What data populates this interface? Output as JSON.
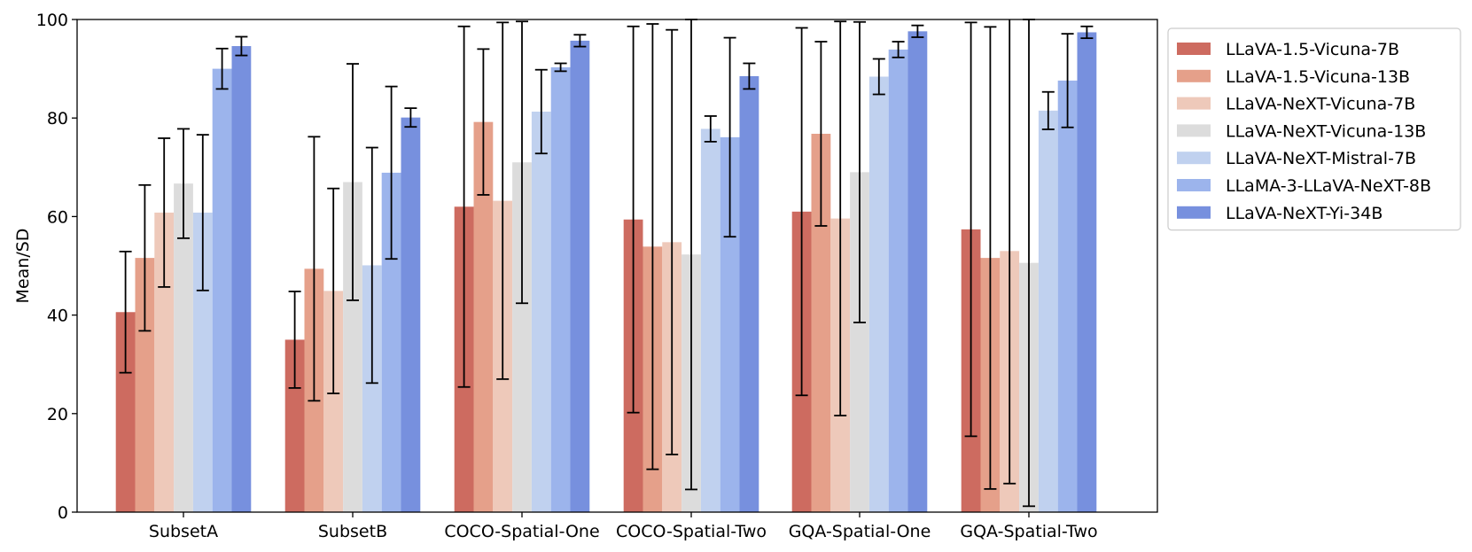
{
  "chart_data": {
    "type": "bar",
    "title": "",
    "xlabel": "",
    "ylabel": "Mean/SD",
    "ylim": [
      0,
      100
    ],
    "yticks": [
      "0",
      "20",
      "40",
      "60",
      "80",
      "100"
    ],
    "grid": false,
    "legend_position": "outside-right-top",
    "categories": [
      "SubsetA",
      "SubsetB",
      "COCO-Spatial-One",
      "COCO-Spatial-Two",
      "GQA-Spatial-One",
      "GQA-Spatial-Two"
    ],
    "series": [
      {
        "name": "LLaVA-1.5-Vicuna-7B",
        "color": "#cd6b60",
        "values": [
          40.6,
          35.0,
          62.0,
          59.4,
          61.0,
          57.4
        ],
        "errors": [
          12.3,
          9.8,
          36.6,
          39.2,
          37.3,
          42.0
        ]
      },
      {
        "name": "LLaVA-1.5-Vicuna-13B",
        "color": "#e5a08a",
        "values": [
          51.6,
          49.4,
          79.2,
          53.9,
          76.8,
          51.6
        ],
        "errors": [
          14.8,
          26.8,
          14.8,
          45.2,
          18.7,
          46.9
        ]
      },
      {
        "name": "LLaVA-NeXT-Vicuna-7B",
        "color": "#eec9ba",
        "values": [
          60.8,
          44.9,
          63.2,
          54.8,
          59.6,
          53.0
        ],
        "errors": [
          15.1,
          20.8,
          36.2,
          43.1,
          40.0,
          47.2
        ]
      },
      {
        "name": "LLaVA-NeXT-Vicuna-13B",
        "color": "#dcdcdc",
        "values": [
          66.7,
          67.0,
          71.0,
          52.3,
          69.0,
          50.6
        ],
        "errors": [
          11.1,
          24.0,
          28.6,
          47.7,
          30.5,
          49.4
        ]
      },
      {
        "name": "LLaVA-NeXT-Mistral-7B",
        "color": "#c0d1ef",
        "values": [
          60.8,
          50.1,
          81.3,
          77.8,
          88.4,
          81.5
        ],
        "errors": [
          15.8,
          23.9,
          8.5,
          2.6,
          3.6,
          3.8
        ]
      },
      {
        "name": "LLaMA-3-LLaVA-NeXT-8B",
        "color": "#9cb4ec",
        "values": [
          90.0,
          68.9,
          90.3,
          76.1,
          93.9,
          87.6
        ],
        "errors": [
          4.1,
          17.5,
          0.8,
          20.2,
          1.6,
          9.5
        ]
      },
      {
        "name": "LLaVA-NeXT-Yi-34B",
        "color": "#7790de",
        "values": [
          94.6,
          80.1,
          95.7,
          88.5,
          97.6,
          97.4
        ],
        "errors": [
          1.9,
          1.9,
          1.2,
          2.6,
          1.2,
          1.2
        ]
      }
    ]
  }
}
